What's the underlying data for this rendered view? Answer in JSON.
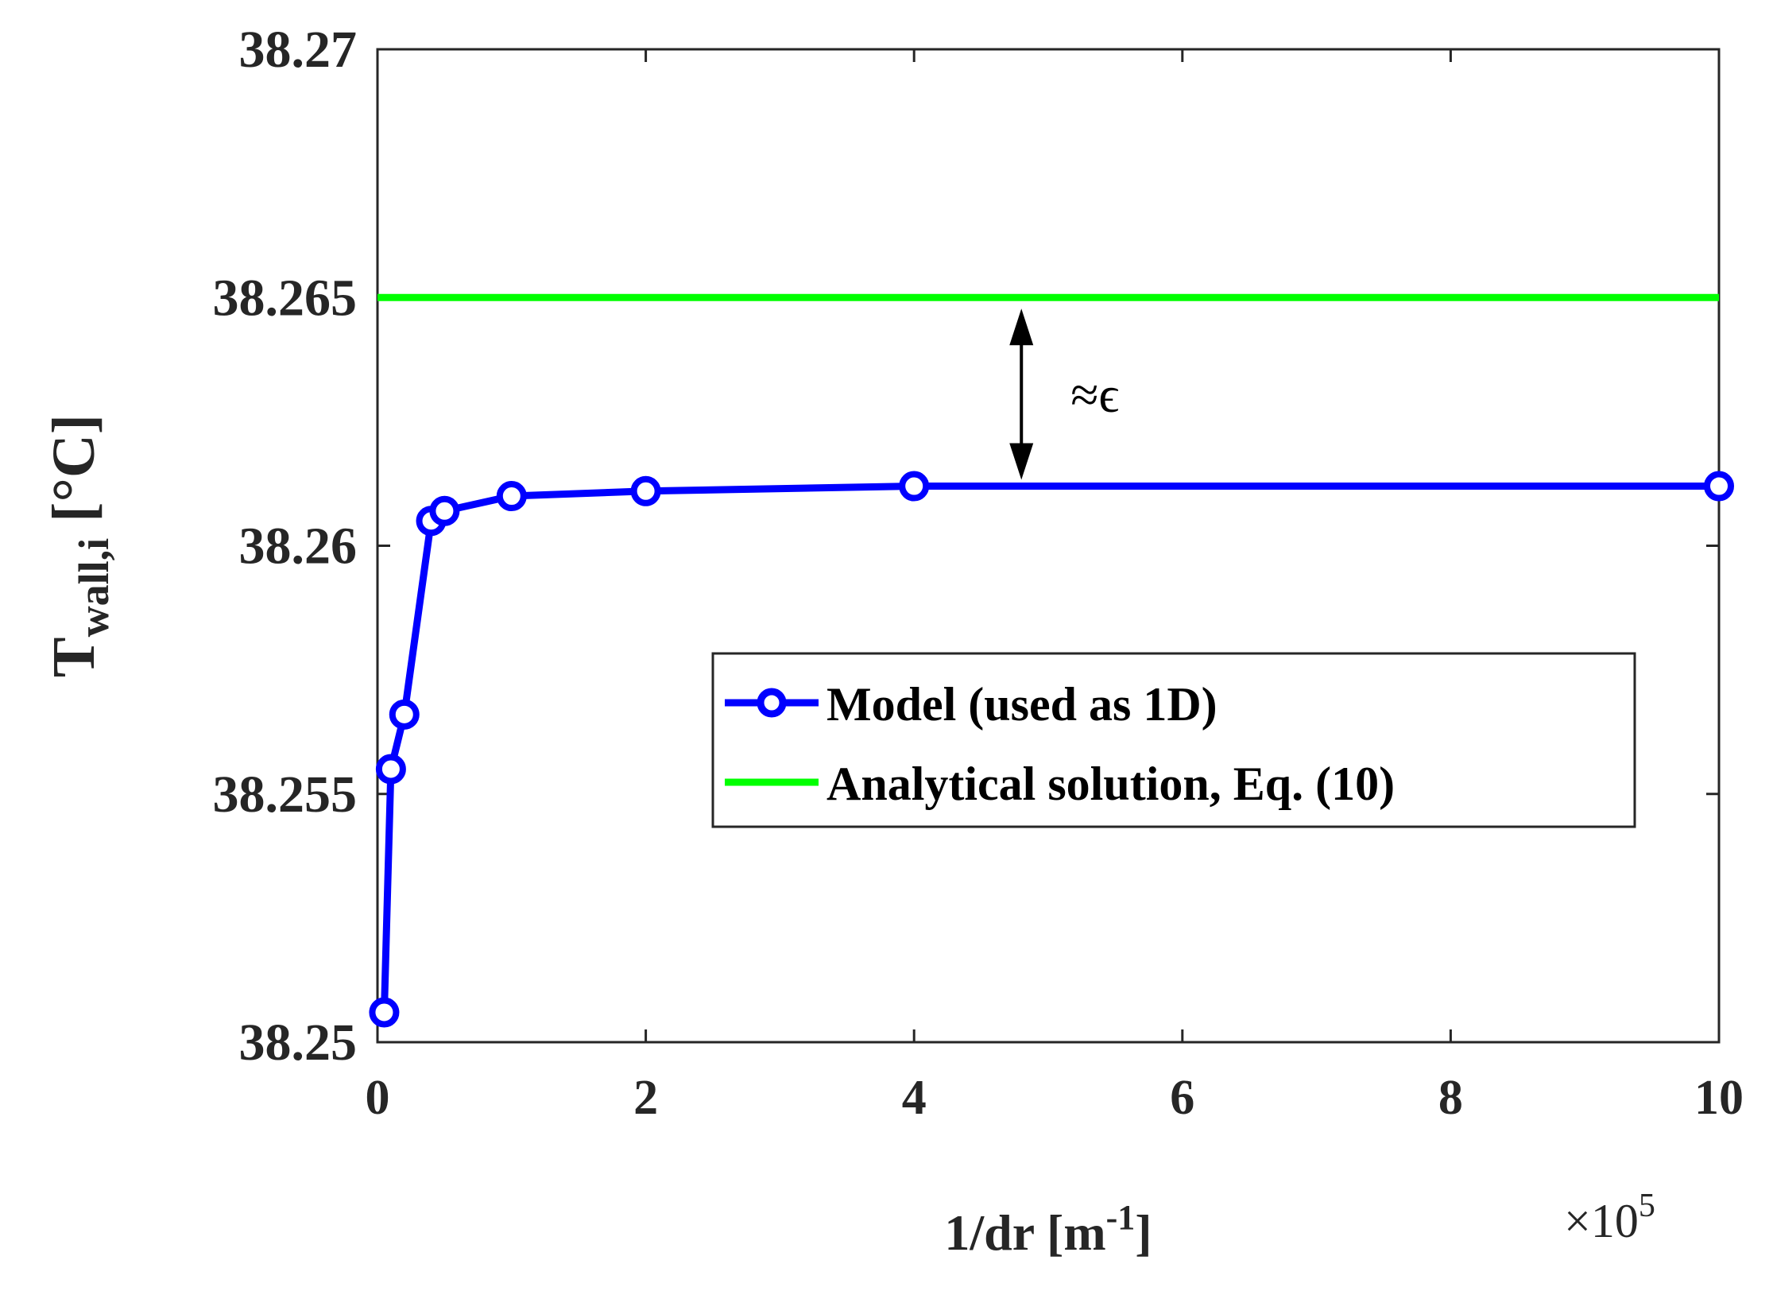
{
  "chart_data": {
    "type": "line",
    "xlabel": {
      "main": "1/dr [m",
      "sup": "-1",
      "close": "]"
    },
    "ylabel": {
      "main": "T",
      "sub": "wall,i",
      "unit": "[°C]"
    },
    "x_multiplier": {
      "base": "×10",
      "exp": "5"
    },
    "xlim": [
      0,
      10
    ],
    "ylim": [
      38.25,
      38.27
    ],
    "xticks": [
      0,
      2,
      4,
      6,
      8,
      10
    ],
    "xtick_labels": [
      "0",
      "2",
      "4",
      "6",
      "8",
      "10"
    ],
    "yticks": [
      38.25,
      38.255,
      38.26,
      38.265,
      38.27
    ],
    "ytick_labels": [
      "38.25",
      "38.255",
      "38.26",
      "38.265",
      "38.27"
    ],
    "grid": false,
    "legend_position": "center-right",
    "series": [
      {
        "name": "Model (used as 1D)",
        "color": "#0000ff",
        "marker": "circle",
        "x": [
          0.05,
          0.1,
          0.2,
          0.4,
          0.5,
          1,
          2,
          4,
          10
        ],
        "y": [
          38.2506,
          38.2555,
          38.2566,
          38.2605,
          38.2607,
          38.261,
          38.2611,
          38.2612,
          38.2612
        ]
      },
      {
        "name": "Analytical solution, Eq. (10)",
        "color": "#00ff00",
        "marker": "none",
        "x": [
          0,
          10
        ],
        "y": [
          38.265,
          38.265
        ]
      }
    ],
    "annotations": [
      {
        "text": "≈ϵ",
        "arrow_x": 4.8,
        "arrow_y_from": 38.265,
        "arrow_y_to": 38.2612
      }
    ]
  }
}
